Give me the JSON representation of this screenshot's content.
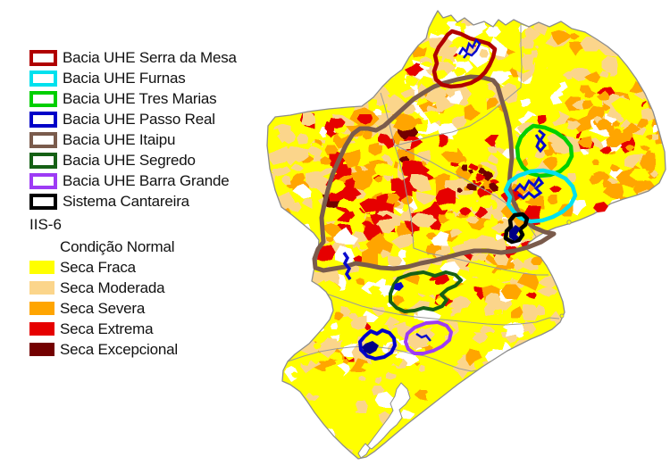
{
  "legend": {
    "basins": [
      {
        "label": "Bacia UHE Serra da Mesa",
        "color": "#B00000"
      },
      {
        "label": "Bacia UHE Furnas",
        "color": "#00E1EE"
      },
      {
        "label": "Bacia UHE Tres Marias",
        "color": "#00CF00"
      },
      {
        "label": "Bacia UHE Passo Real",
        "color": "#0000C8"
      },
      {
        "label": "Bacia UHE Itaipu",
        "color": "#7A5B4C"
      },
      {
        "label": "Bacia UHE Segredo",
        "color": "#156015"
      },
      {
        "label": "Bacia UHE Barra Grande",
        "color": "#9D3BF5"
      },
      {
        "label": "Sistema Cantareira",
        "color": "#000000"
      }
    ],
    "index": {
      "title": "IIS-6",
      "classes": [
        {
          "label": "Condição Normal",
          "color": "#FFFFFF"
        },
        {
          "label": "Seca Fraca",
          "color": "#FFFF00"
        },
        {
          "label": "Seca Moderada",
          "color": "#FBD58B"
        },
        {
          "label": "Seca Severa",
          "color": "#FFA500"
        },
        {
          "label": "Seca Extrema",
          "color": "#E60000"
        },
        {
          "label": "Seca Excepcional",
          "color": "#730000"
        }
      ]
    }
  },
  "map": {
    "state_border_color": "#9A9A9A",
    "outline_color": "#8C8C8C",
    "water_color": "#0A0ACD",
    "reservoir_dark": "#000085",
    "background": "#FFFFFF"
  }
}
